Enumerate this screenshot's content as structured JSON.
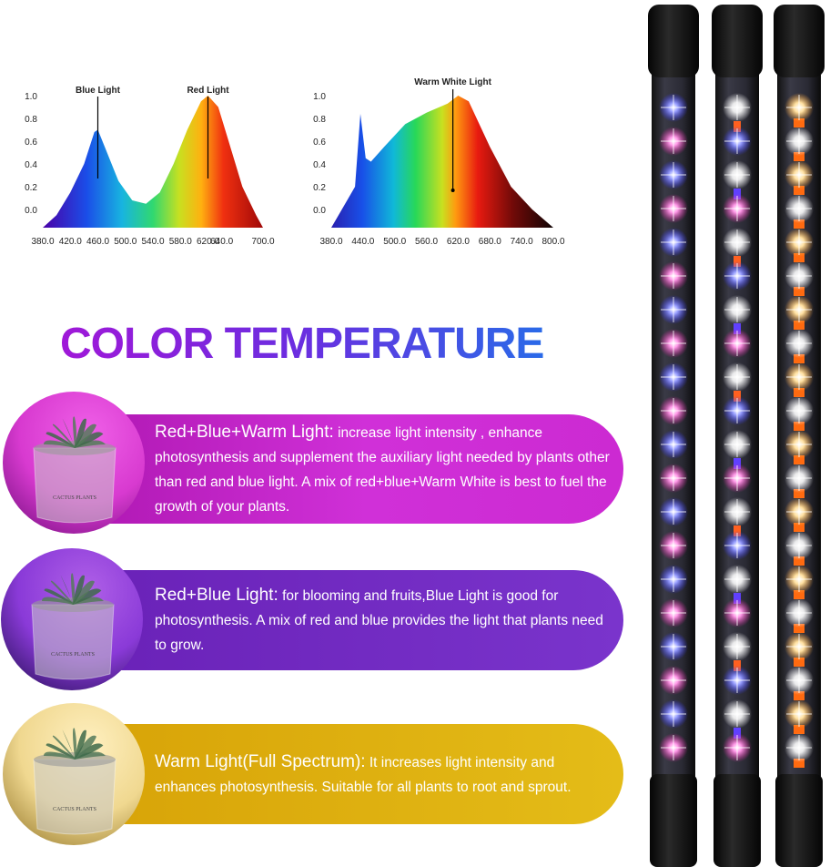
{
  "spectra": [
    {
      "xlim": [
        380,
        700
      ],
      "ylim": [
        -0.16,
        1.0
      ],
      "xticks": [
        {
          "value": 380,
          "label": "380.0"
        },
        {
          "value": 420,
          "label": "420.0"
        },
        {
          "value": 460,
          "label": "460.0"
        },
        {
          "value": 500,
          "label": "500.0"
        },
        {
          "value": 540,
          "label": "540.0"
        },
        {
          "value": 580,
          "label": "580.0"
        },
        {
          "value": 620,
          "label": "620.0"
        },
        {
          "value": 640,
          "label": "640.0"
        },
        {
          "value": 700,
          "label": "700.0"
        }
      ],
      "yticks": [
        {
          "value": 0,
          "label": "0.0"
        },
        {
          "value": 0.2,
          "label": "0.2"
        },
        {
          "value": 0.4,
          "label": "0.4"
        },
        {
          "value": 0.6,
          "label": "0.6"
        },
        {
          "value": 0.8,
          "label": "0.8"
        },
        {
          "value": 1,
          "label": "1.0"
        }
      ],
      "x": [
        380,
        400,
        420,
        440,
        455,
        460,
        470,
        490,
        510,
        530,
        550,
        570,
        590,
        610,
        620,
        635,
        650,
        670,
        690,
        700
      ],
      "values": [
        -0.16,
        -0.05,
        0.15,
        0.4,
        0.68,
        0.7,
        0.55,
        0.25,
        0.08,
        0.05,
        0.15,
        0.4,
        0.7,
        0.95,
        1.0,
        0.9,
        0.6,
        0.2,
        -0.05,
        -0.16
      ],
      "annotations": [
        {
          "text": "Blue Light",
          "x": 460
        },
        {
          "text": "Red Light",
          "x": 620
        }
      ]
    },
    {
      "xlim": [
        380,
        800
      ],
      "ylim": [
        -0.16,
        1.0
      ],
      "xticks": [
        {
          "value": 380,
          "label": "380.0"
        },
        {
          "value": 440,
          "label": "440.0"
        },
        {
          "value": 500,
          "label": "500.0"
        },
        {
          "value": 560,
          "label": "560.0"
        },
        {
          "value": 620,
          "label": "620.0"
        },
        {
          "value": 680,
          "label": "680.0"
        },
        {
          "value": 740,
          "label": "740.0"
        },
        {
          "value": 800,
          "label": "800.0"
        }
      ],
      "yticks": [
        {
          "value": 0,
          "label": "0.0"
        },
        {
          "value": 0.2,
          "label": "0.2"
        },
        {
          "value": 0.4,
          "label": "0.4"
        },
        {
          "value": 0.6,
          "label": "0.6"
        },
        {
          "value": 0.8,
          "label": "0.8"
        },
        {
          "value": 1,
          "label": "1.0"
        }
      ],
      "x": [
        380,
        425,
        435,
        445,
        455,
        480,
        520,
        560,
        600,
        620,
        640,
        680,
        720,
        760,
        800
      ],
      "values": [
        -0.16,
        0.2,
        0.84,
        0.45,
        0.42,
        0.55,
        0.75,
        0.85,
        0.93,
        1.0,
        0.95,
        0.55,
        0.2,
        0.0,
        -0.16
      ],
      "annotations": [
        {
          "text": "Warm White Light",
          "x": 610
        }
      ]
    }
  ],
  "heading": "COLOR TEMPERATURE",
  "pot_label": "CACTUS PLANTS",
  "modes": [
    {
      "name": "Red+Blue+Warm Light:",
      "text": "increase light intensity , enhance photosynthesis and supplement the auxiliary light needed by plants other than red and blue light. A mix of red+blue+Warm White is best to fuel the growth of your plants."
    },
    {
      "name": "Red+Blue Light:",
      "text": "for blooming and fruits,Blue Light is good for photosynthesis. A mix of red and blue provides the light that plants need to grow."
    },
    {
      "name": "Warm Light(Full Spectrum):",
      "text": "It increases light intensity and enhances photosynthesis. Suitable for all plants to root and sprout."
    }
  ]
}
